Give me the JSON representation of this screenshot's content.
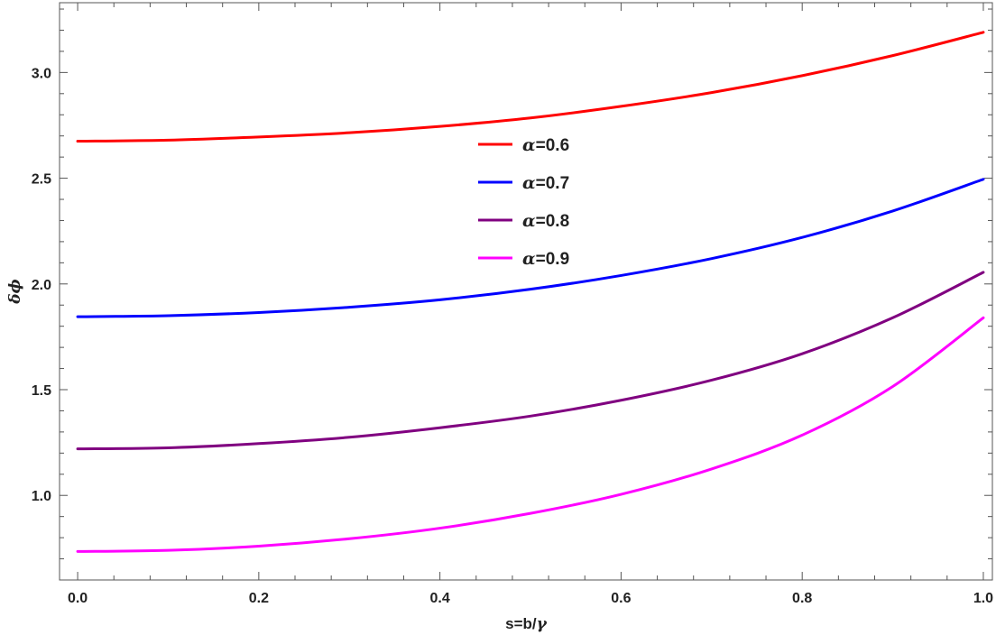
{
  "chart_data": {
    "type": "line",
    "xlabel": "s=b/γ",
    "ylabel": "δϕ",
    "xlim": [
      -0.02,
      1.01
    ],
    "ylim": [
      0.6,
      3.33
    ],
    "x_ticks": [
      0.0,
      0.2,
      0.4,
      0.6,
      0.8,
      1.0
    ],
    "x_tick_labels": [
      "0.0",
      "0.2",
      "0.4",
      "0.6",
      "0.8",
      "1.0"
    ],
    "y_ticks": [
      1.0,
      1.5,
      2.0,
      2.5,
      3.0
    ],
    "y_tick_labels": [
      "1.0",
      "1.5",
      "2.0",
      "2.5",
      "3.0"
    ],
    "grid": false,
    "legend_position": "center",
    "x": [
      0.0,
      0.1,
      0.2,
      0.3,
      0.4,
      0.5,
      0.6,
      0.7,
      0.8,
      0.9,
      1.0
    ],
    "series": [
      {
        "name": "α=0.6",
        "color": "#ff0000",
        "values": [
          2.675,
          2.68,
          2.695,
          2.715,
          2.745,
          2.785,
          2.84,
          2.905,
          2.985,
          3.08,
          3.19
        ]
      },
      {
        "name": "α=0.7",
        "color": "#0000ff",
        "values": [
          1.845,
          1.85,
          1.865,
          1.89,
          1.925,
          1.975,
          2.04,
          2.12,
          2.22,
          2.345,
          2.495
        ]
      },
      {
        "name": "α=0.8",
        "color": "#800080",
        "values": [
          1.22,
          1.225,
          1.245,
          1.275,
          1.32,
          1.375,
          1.45,
          1.545,
          1.67,
          1.84,
          2.055
        ]
      },
      {
        "name": "α=0.9",
        "color": "#ff00ff",
        "values": [
          0.735,
          0.74,
          0.76,
          0.795,
          0.845,
          0.915,
          1.005,
          1.125,
          1.285,
          1.515,
          1.84
        ]
      }
    ]
  }
}
